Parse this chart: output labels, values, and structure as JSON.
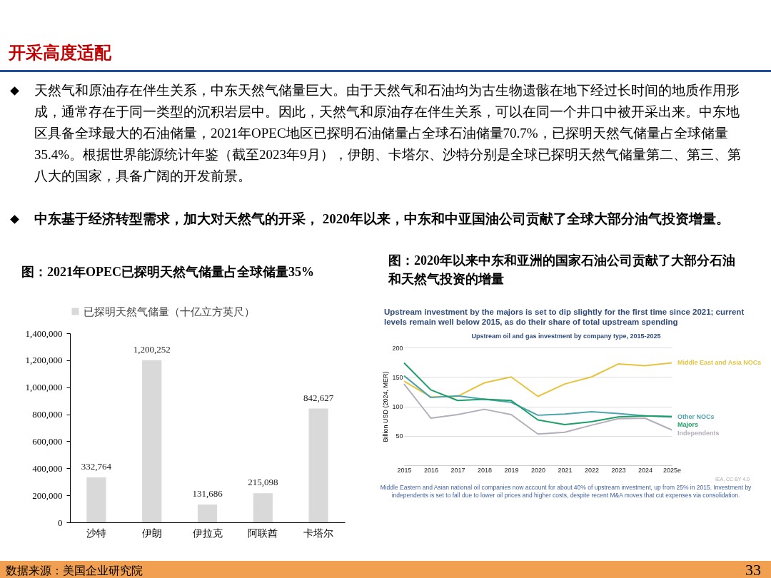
{
  "chart_data": [
    {
      "type": "other",
      "title": "开采高度适配",
      "annotations": [
        "天然气和原油存在伴生关系，中东天然气储量巨大。由于天然气和石油均为古生物遗骸在地下经过长时间的地质作用形成，通常存在于同一类型的沉积岩层中。因此，天然气和原油存在伴生关系，可以在同一个井口中被开采出来。中东地区具备全球最大的石油储量，2021年OPEC地区已探明石油储量占全球石油储量70.7%，已探明天然气储量占全球储量35.4%。根据世界能源统计年鉴（截至2023年9月），伊朗、卡塔尔、沙特分别是全球已探明天然气储量第二、第三、第八大的国家，具备广阔的开发前景。",
        "中东基于经济转型需求，加大对天然气的开采， 2020年以来，中东和中亚国油公司贡献了全球大部分油气投资增量。",
        "数据来源：美国企业研究院",
        "33"
      ]
    },
    {
      "type": "bar",
      "title": "图：2021年OPEC已探明天然气储量占全球储量35%",
      "categories": [
        "沙特",
        "伊朗",
        "伊拉克",
        "阿联酋",
        "卡塔尔"
      ],
      "series": [
        {
          "name": "已探明天然气储量（十亿立方英尺）",
          "color": "#d9d9d9",
          "values": [
            332764,
            1200252,
            131686,
            215098,
            842627
          ]
        }
      ],
      "value_labels": [
        "332,764",
        "1,200,252",
        "131,686",
        "215,098",
        "842,627"
      ],
      "ylim": [
        0,
        1400000
      ],
      "yticks": [
        0,
        {
          "value": 200000,
          "label": "200,000"
        },
        {
          "value": 400000,
          "label": "400,000"
        },
        {
          "value": 600000,
          "label": "600,000"
        },
        {
          "value": 800000,
          "label": "800,000"
        },
        {
          "value": 1000000,
          "label": "1,000,000"
        },
        {
          "value": 1200000,
          "label": "1,200,000"
        },
        {
          "value": 1400000,
          "label": "1,400,000"
        }
      ],
      "legend": "top",
      "grid": false
    },
    {
      "type": "line",
      "title": "图：2020年以来中东和亚洲的国家石油公司贡献了大部分石油和天然气投资的增量",
      "subtitle": "Upstream investment by the majors is set to dip slightly for the first time since 2021; current levels remain well below 2015, as do their share of total upstream spending",
      "ylabel": "Billion USD (2024, MER)",
      "categories": [
        "2015",
        "2016",
        "2017",
        "2018",
        "2019",
        "2020",
        "2021",
        "2022",
        "2023",
        "2024",
        "2025e"
      ],
      "series": [
        {
          "name": "Middle East and Asia NOCs",
          "color": "#e6c440",
          "values": [
            143,
            116,
            117,
            140,
            150,
            117,
            138,
            150,
            172,
            169,
            174
          ]
        },
        {
          "name": "Other NOCs",
          "color": "#4ea3ae",
          "values": [
            152,
            115,
            118,
            112,
            107,
            85,
            87,
            91,
            88,
            84,
            83
          ]
        },
        {
          "name": "Majors",
          "color": "#1e9e68",
          "values": [
            174,
            128,
            110,
            112,
            110,
            77,
            69,
            74,
            82,
            84,
            82
          ]
        },
        {
          "name": "Independents",
          "color": "#b4aebb",
          "values": [
            138,
            80,
            86,
            95,
            86,
            53,
            56,
            68,
            79,
            80,
            60
          ]
        }
      ],
      "ylim": [
        0,
        200
      ],
      "yticks": [
        50,
        100,
        150,
        200
      ],
      "grid": "y",
      "legend": false,
      "annotations": [
        "Upstream oil and gas investment by company type, 2015-2025",
        "IEA, CC BY 4.0",
        "Middle Eastern and Asian national oil companies now account for about 40% of upstream investment, up from 25% in 2015. Investment by independents is set to fall due to lower oil prices and higher costs, despite recent M&A moves that cut expenses via consolidation."
      ]
    }
  ]
}
